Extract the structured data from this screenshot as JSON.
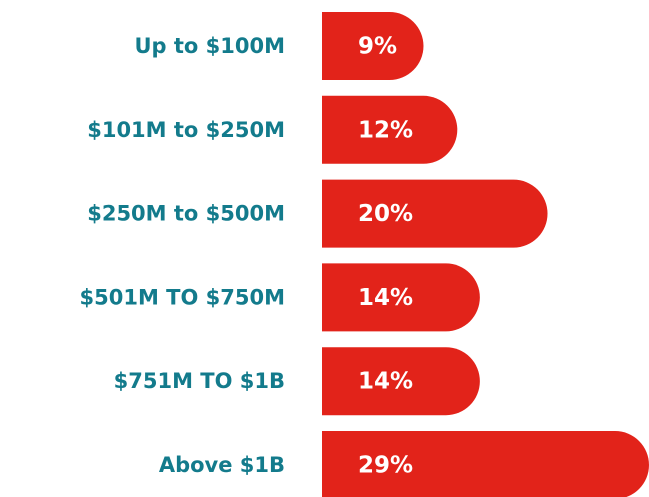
{
  "chart_data": {
    "type": "bar",
    "orientation": "horizontal",
    "categories": [
      "Up to $100M",
      "$101M to $250M",
      "$250M to $500M",
      "$501M TO $750M",
      "$751M TO $1B",
      "Above $1B"
    ],
    "values": [
      9,
      12,
      20,
      14,
      14,
      29
    ],
    "value_labels": [
      "9%",
      "12%",
      "20%",
      "14%",
      "14%",
      "29%"
    ],
    "color": "#e2231a",
    "label_color": "#137b8c"
  }
}
